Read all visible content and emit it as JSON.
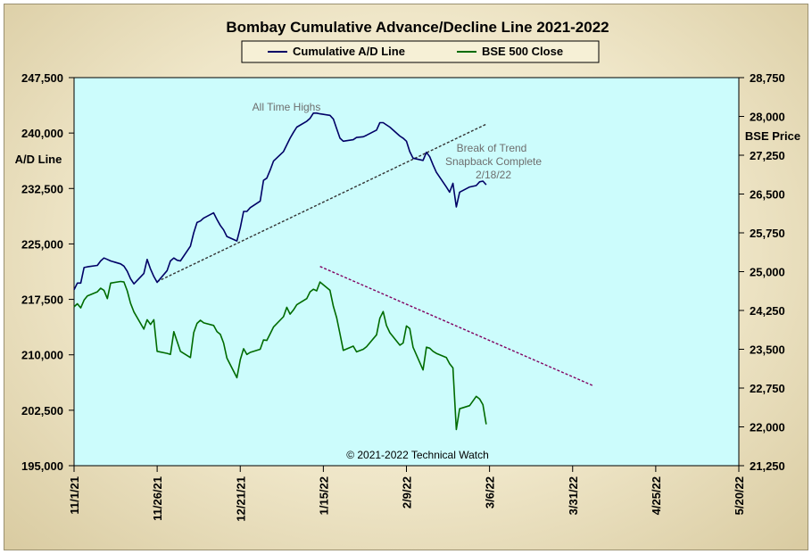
{
  "chart_data": {
    "type": "line",
    "title": "Bombay Cumulative Advance/Decline Line 2021-2022",
    "ylabel_left": "A/D Line",
    "ylabel_right": "BSE Price",
    "ylim_left": [
      195000,
      247500
    ],
    "ylim_right": [
      21250,
      28750
    ],
    "yticks_left": [
      "195,000",
      "202,500",
      "210,000",
      "217,500",
      "225,000",
      "232,500",
      "240,000",
      "247,500"
    ],
    "yticks_right": [
      "21,250",
      "22,000",
      "22,750",
      "23,500",
      "24,250",
      "25,000",
      "25,750",
      "26,500",
      "27,250",
      "28,000",
      "28,750"
    ],
    "x_ticks": [
      "11/1/21",
      "11/26/21",
      "12/21/21",
      "1/15/22",
      "2/9/22",
      "3/6/22",
      "3/31/22",
      "4/25/22",
      "5/20/22"
    ],
    "xlim": [
      "2021-11-01",
      "2022-05-20"
    ],
    "grid": false,
    "legend_position": "top-center",
    "colors": {
      "plot_bg": "#ccfcfc",
      "ad_line": "#000066",
      "bse": "#006b00",
      "ad_trend": "#333333",
      "bse_trend": "#800060",
      "annotation": "#6e6e6e"
    },
    "series": [
      {
        "name": "Cumulative A/D Line",
        "axis": "left",
        "points": [
          [
            "2021-11-01",
            218800
          ],
          [
            "2021-11-02",
            219700
          ],
          [
            "2021-11-03",
            219700
          ],
          [
            "2021-11-04",
            221800
          ],
          [
            "2021-11-05",
            221900
          ],
          [
            "2021-11-08",
            222100
          ],
          [
            "2021-11-09",
            222700
          ],
          [
            "2021-11-10",
            223100
          ],
          [
            "2021-11-11",
            222900
          ],
          [
            "2021-11-12",
            222700
          ],
          [
            "2021-11-15",
            222300
          ],
          [
            "2021-11-16",
            222000
          ],
          [
            "2021-11-17",
            221300
          ],
          [
            "2021-11-18",
            220300
          ],
          [
            "2021-11-19",
            219600
          ],
          [
            "2021-11-22",
            221000
          ],
          [
            "2021-11-23",
            222900
          ],
          [
            "2021-11-24",
            221600
          ],
          [
            "2021-11-25",
            220600
          ],
          [
            "2021-11-26",
            219800
          ],
          [
            "2021-11-29",
            221400
          ],
          [
            "2021-11-30",
            222700
          ],
          [
            "2021-12-01",
            223100
          ],
          [
            "2021-12-02",
            222800
          ],
          [
            "2021-12-03",
            222700
          ],
          [
            "2021-12-06",
            224700
          ],
          [
            "2021-12-07",
            226500
          ],
          [
            "2021-12-08",
            227900
          ],
          [
            "2021-12-09",
            228100
          ],
          [
            "2021-12-10",
            228500
          ],
          [
            "2021-12-13",
            229200
          ],
          [
            "2021-12-14",
            228300
          ],
          [
            "2021-12-15",
            227500
          ],
          [
            "2021-12-16",
            226900
          ],
          [
            "2021-12-17",
            226000
          ],
          [
            "2021-12-20",
            225400
          ],
          [
            "2021-12-21",
            227200
          ],
          [
            "2021-12-22",
            229400
          ],
          [
            "2021-12-23",
            229400
          ],
          [
            "2021-12-24",
            229900
          ],
          [
            "2021-12-27",
            230800
          ],
          [
            "2021-12-28",
            233600
          ],
          [
            "2021-12-29",
            233900
          ],
          [
            "2021-12-30",
            235000
          ],
          [
            "2021-12-31",
            236200
          ],
          [
            "2022-01-03",
            237500
          ],
          [
            "2022-01-04",
            238400
          ],
          [
            "2022-01-05",
            239300
          ],
          [
            "2022-01-06",
            240100
          ],
          [
            "2022-01-07",
            240800
          ],
          [
            "2022-01-10",
            241600
          ],
          [
            "2022-01-11",
            242000
          ],
          [
            "2022-01-12",
            242700
          ],
          [
            "2022-01-13",
            242700
          ],
          [
            "2022-01-14",
            242600
          ],
          [
            "2022-01-17",
            242400
          ],
          [
            "2022-01-18",
            241900
          ],
          [
            "2022-01-19",
            240600
          ],
          [
            "2022-01-20",
            239300
          ],
          [
            "2022-01-21",
            238900
          ],
          [
            "2022-01-24",
            239100
          ],
          [
            "2022-01-25",
            239400
          ],
          [
            "2022-01-27",
            239500
          ],
          [
            "2022-01-28",
            239700
          ],
          [
            "2022-01-31",
            240400
          ],
          [
            "2022-02-01",
            241400
          ],
          [
            "2022-02-02",
            241400
          ],
          [
            "2022-02-03",
            241100
          ],
          [
            "2022-02-04",
            240800
          ],
          [
            "2022-02-07",
            239600
          ],
          [
            "2022-02-08",
            239300
          ],
          [
            "2022-02-09",
            238900
          ],
          [
            "2022-02-10",
            237500
          ],
          [
            "2022-02-11",
            236600
          ],
          [
            "2022-02-14",
            236300
          ],
          [
            "2022-02-15",
            237400
          ],
          [
            "2022-02-16",
            236800
          ],
          [
            "2022-02-17",
            235700
          ],
          [
            "2022-02-18",
            234700
          ],
          [
            "2022-02-21",
            232700
          ],
          [
            "2022-02-22",
            232000
          ],
          [
            "2022-02-23",
            233200
          ],
          [
            "2022-02-24",
            230000
          ],
          [
            "2022-02-25",
            232000
          ],
          [
            "2022-02-28",
            232700
          ],
          [
            "2022-03-02",
            232900
          ],
          [
            "2022-03-03",
            233400
          ],
          [
            "2022-03-04",
            233500
          ],
          [
            "2022-03-05",
            233000
          ]
        ]
      },
      {
        "name": "BSE 500 Close",
        "axis": "right",
        "points": [
          [
            "2021-11-01",
            24320
          ],
          [
            "2021-11-02",
            24380
          ],
          [
            "2021-11-03",
            24300
          ],
          [
            "2021-11-04",
            24450
          ],
          [
            "2021-11-05",
            24530
          ],
          [
            "2021-11-08",
            24610
          ],
          [
            "2021-11-09",
            24680
          ],
          [
            "2021-11-10",
            24640
          ],
          [
            "2021-11-11",
            24480
          ],
          [
            "2021-11-12",
            24780
          ],
          [
            "2021-11-15",
            24810
          ],
          [
            "2021-11-16",
            24800
          ],
          [
            "2021-11-17",
            24630
          ],
          [
            "2021-11-18",
            24390
          ],
          [
            "2021-11-19",
            24220
          ],
          [
            "2021-11-22",
            23890
          ],
          [
            "2021-11-23",
            24070
          ],
          [
            "2021-11-24",
            23980
          ],
          [
            "2021-11-25",
            24070
          ],
          [
            "2021-11-26",
            23460
          ],
          [
            "2021-11-29",
            23420
          ],
          [
            "2021-11-30",
            23400
          ],
          [
            "2021-12-01",
            23840
          ],
          [
            "2021-12-02",
            23650
          ],
          [
            "2021-12-03",
            23460
          ],
          [
            "2021-12-06",
            23340
          ],
          [
            "2021-12-07",
            23820
          ],
          [
            "2021-12-08",
            24000
          ],
          [
            "2021-12-09",
            24060
          ],
          [
            "2021-12-10",
            24010
          ],
          [
            "2021-12-13",
            23960
          ],
          [
            "2021-12-14",
            23840
          ],
          [
            "2021-12-15",
            23790
          ],
          [
            "2021-12-16",
            23620
          ],
          [
            "2021-12-17",
            23330
          ],
          [
            "2021-12-20",
            22950
          ],
          [
            "2021-12-21",
            23300
          ],
          [
            "2021-12-22",
            23510
          ],
          [
            "2021-12-23",
            23400
          ],
          [
            "2021-12-24",
            23440
          ],
          [
            "2021-12-27",
            23500
          ],
          [
            "2021-12-28",
            23680
          ],
          [
            "2021-12-29",
            23670
          ],
          [
            "2021-12-30",
            23800
          ],
          [
            "2021-12-31",
            23930
          ],
          [
            "2022-01-03",
            24130
          ],
          [
            "2022-01-04",
            24310
          ],
          [
            "2022-01-05",
            24180
          ],
          [
            "2022-01-06",
            24260
          ],
          [
            "2022-01-07",
            24360
          ],
          [
            "2022-01-10",
            24480
          ],
          [
            "2022-01-11",
            24610
          ],
          [
            "2022-01-12",
            24660
          ],
          [
            "2022-01-13",
            24630
          ],
          [
            "2022-01-14",
            24800
          ],
          [
            "2022-01-17",
            24640
          ],
          [
            "2022-01-18",
            24330
          ],
          [
            "2022-01-19",
            24110
          ],
          [
            "2022-01-20",
            23800
          ],
          [
            "2022-01-21",
            23480
          ],
          [
            "2022-01-24",
            23560
          ],
          [
            "2022-01-25",
            23450
          ],
          [
            "2022-01-27",
            23500
          ],
          [
            "2022-01-28",
            23550
          ],
          [
            "2022-01-31",
            23780
          ],
          [
            "2022-02-01",
            24100
          ],
          [
            "2022-02-02",
            24230
          ],
          [
            "2022-02-03",
            23960
          ],
          [
            "2022-02-04",
            23820
          ],
          [
            "2022-02-07",
            23580
          ],
          [
            "2022-02-08",
            23620
          ],
          [
            "2022-02-09",
            23950
          ],
          [
            "2022-02-10",
            23900
          ],
          [
            "2022-02-11",
            23540
          ],
          [
            "2022-02-14",
            23100
          ],
          [
            "2022-02-15",
            23540
          ],
          [
            "2022-02-16",
            23520
          ],
          [
            "2022-02-17",
            23460
          ],
          [
            "2022-02-18",
            23420
          ],
          [
            "2022-02-21",
            23340
          ],
          [
            "2022-02-22",
            23220
          ],
          [
            "2022-02-23",
            23140
          ],
          [
            "2022-02-24",
            21950
          ],
          [
            "2022-02-25",
            22350
          ],
          [
            "2022-02-28",
            22410
          ],
          [
            "2022-03-02",
            22590
          ],
          [
            "2022-03-03",
            22540
          ],
          [
            "2022-03-04",
            22430
          ],
          [
            "2022-03-05",
            22050
          ]
        ]
      }
    ],
    "trendlines": [
      {
        "axis": "left",
        "from": [
          "2021-11-26",
          219900
        ],
        "to": [
          "2022-03-05",
          241200
        ]
      },
      {
        "axis": "right",
        "from": [
          "2022-01-14",
          25100
        ],
        "to": [
          "2022-04-06",
          22800
        ]
      }
    ],
    "annotations": [
      {
        "text": "All Time Highs"
      },
      {
        "text": "Break of Trend"
      },
      {
        "text": "Snapback Complete"
      },
      {
        "text": "2/18/22"
      },
      {
        "text": "© 2021-2022  Technical Watch"
      }
    ]
  }
}
